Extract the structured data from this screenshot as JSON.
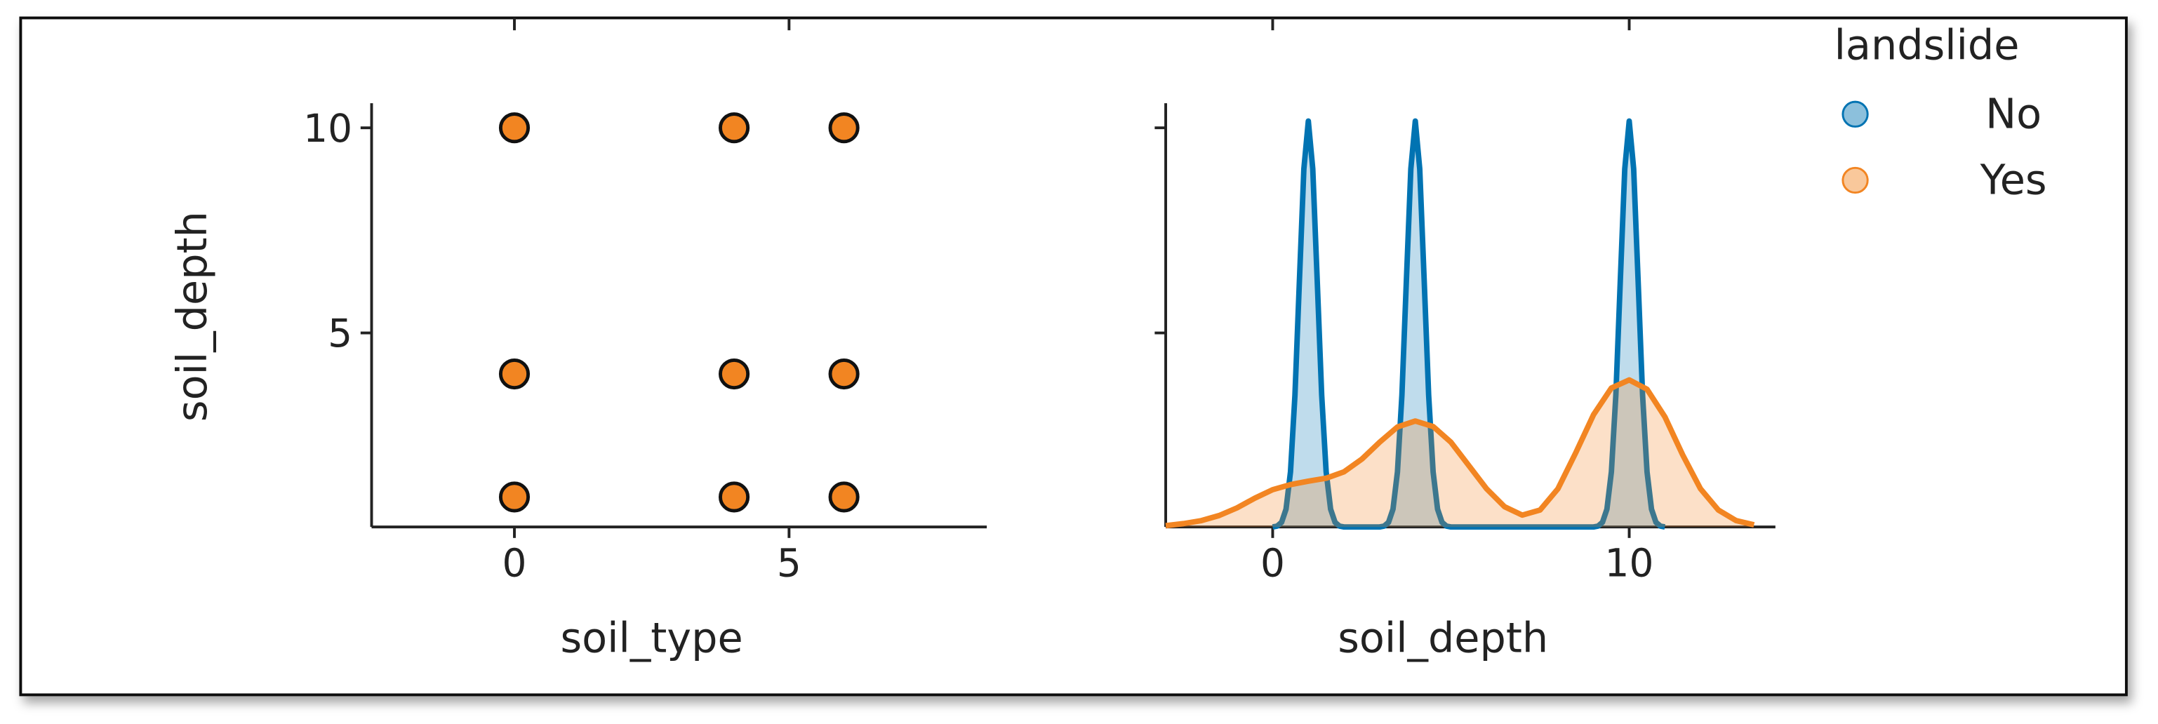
{
  "chart_data": [
    {
      "type": "scatter",
      "xlabel": "soil_type",
      "ylabel": "soil_depth",
      "series": [
        {
          "color": "#f28522",
          "x": [
            0,
            0,
            0,
            4,
            4,
            4,
            6,
            6,
            6
          ],
          "values": [
            10,
            4,
            1,
            10,
            4,
            1,
            10,
            4,
            1
          ]
        }
      ],
      "xlim": [
        -2.6,
        8.6
      ],
      "ylim": [
        0.27,
        10.6
      ],
      "xticks": [
        0,
        5
      ],
      "yticks": [
        5,
        10
      ]
    },
    {
      "type": "kde",
      "xlabel": "soil_depth",
      "legend_title": "landslide",
      "legend": "outside upper right",
      "series": [
        {
          "name": "No",
          "color": "#0173b2",
          "x": [
            0,
            0.125,
            0.25,
            0.375,
            0.5,
            0.625,
            0.75,
            0.875,
            1,
            1.125,
            1.25,
            1.375,
            1.5,
            1.625,
            1.75,
            1.875,
            2,
            3,
            3.125,
            3.25,
            3.375,
            3.5,
            3.625,
            3.75,
            3.875,
            4,
            4.125,
            4.25,
            4.375,
            4.5,
            4.625,
            4.75,
            4.875,
            5,
            9,
            9.125,
            9.25,
            9.375,
            9.5,
            9.625,
            9.75,
            9.875,
            10,
            10.125,
            10.25,
            10.375,
            10.5,
            10.625,
            10.75,
            10.875,
            11
          ],
          "values": [
            0,
            0.002,
            0.011,
            0.042,
            0.13,
            0.311,
            0.581,
            0.845,
            0.958,
            0.845,
            0.581,
            0.311,
            0.13,
            0.042,
            0.011,
            0.002,
            0,
            0,
            0.002,
            0.011,
            0.042,
            0.13,
            0.311,
            0.581,
            0.845,
            0.958,
            0.845,
            0.581,
            0.311,
            0.13,
            0.042,
            0.011,
            0.002,
            0,
            0,
            0.002,
            0.011,
            0.042,
            0.13,
            0.311,
            0.581,
            0.845,
            0.958,
            0.845,
            0.581,
            0.311,
            0.13,
            0.042,
            0.011,
            0.002,
            0
          ]
        },
        {
          "name": "Yes",
          "color": "#f28522",
          "x": [
            -3,
            -2.5,
            -2,
            -1.5,
            -1,
            -0.5,
            0,
            0.5,
            1,
            1.5,
            2,
            2.5,
            3,
            3.5,
            4,
            4.5,
            5,
            5.5,
            6,
            6.5,
            7,
            7.5,
            8,
            8.5,
            9,
            9.5,
            10,
            10.5,
            11,
            11.5,
            12,
            12.5,
            13,
            13.5
          ],
          "values": [
            0.003,
            0.008,
            0.015,
            0.027,
            0.045,
            0.068,
            0.088,
            0.1,
            0.108,
            0.115,
            0.13,
            0.16,
            0.2,
            0.236,
            0.25,
            0.237,
            0.2,
            0.145,
            0.09,
            0.048,
            0.028,
            0.04,
            0.09,
            0.175,
            0.265,
            0.328,
            0.347,
            0.325,
            0.26,
            0.17,
            0.09,
            0.04,
            0.015,
            0.005
          ]
        }
      ],
      "xlim": [
        -3,
        14.1
      ],
      "ylim": [
        0,
        1
      ],
      "xticks": [
        0,
        10
      ]
    }
  ]
}
